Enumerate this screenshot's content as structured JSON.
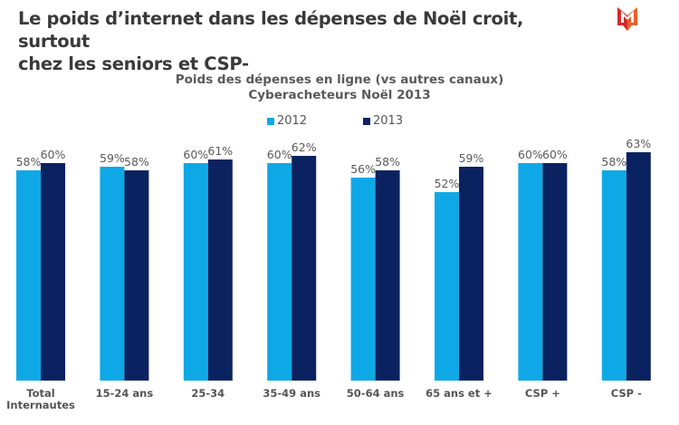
{
  "slide": {
    "title_line1": "Le poids d’internet dans les dépenses de Noël croit, surtout",
    "title_line2": "chez les seniors et CSP-",
    "logo": "M-logo-icon"
  },
  "colors": {
    "series_2012": "#0fa8e6",
    "series_2013": "#0b2260",
    "logo_red": "#d42a2a",
    "logo_orange": "#e8602c"
  },
  "chart_data": {
    "type": "bar",
    "title": "Poids des dépenses en ligne (vs autres canaux)",
    "subtitle": "Cyberacheteurs Noël 2013",
    "xlabel": "",
    "ylabel": "",
    "ylim": [
      0,
      70
    ],
    "grid": false,
    "legend_position": "top-center",
    "categories": [
      "Total Internautes",
      "15-24 ans",
      "25-34",
      "35-49 ans",
      "50-64 ans",
      "65 ans et +",
      "CSP +",
      "CSP -"
    ],
    "category_lines": [
      [
        "Total",
        "Internautes"
      ],
      [
        "15-24 ans"
      ],
      [
        "25-34"
      ],
      [
        "35-49 ans"
      ],
      [
        "50-64 ans"
      ],
      [
        "65 ans et +"
      ],
      [
        "CSP +"
      ],
      [
        "CSP -"
      ]
    ],
    "series": [
      {
        "name": "2012",
        "values": [
          58,
          59,
          60,
          60,
          56,
          52,
          60,
          58
        ],
        "labels": [
          "58%",
          "59%",
          "60%",
          "60%",
          "56%",
          "52%",
          "60%",
          "58%"
        ]
      },
      {
        "name": "2013",
        "values": [
          60,
          58,
          61,
          62,
          58,
          59,
          60,
          63
        ],
        "labels": [
          "60%",
          "58%",
          "61%",
          "62%",
          "58%",
          "59%",
          "60%",
          "63%"
        ]
      }
    ]
  }
}
